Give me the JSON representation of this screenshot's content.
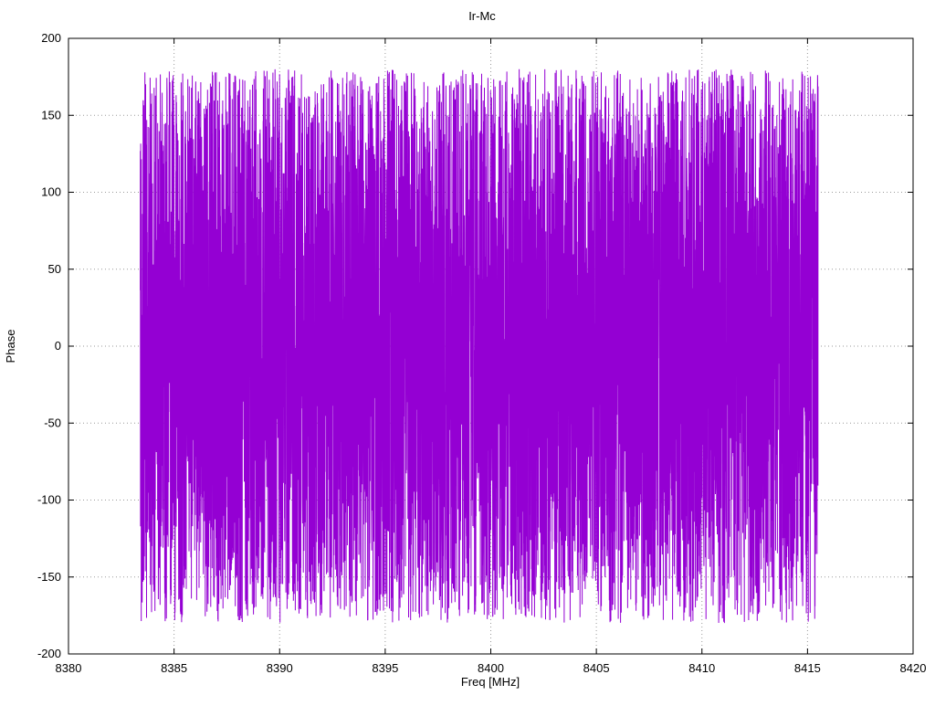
{
  "chart_data": {
    "type": "line",
    "title": "Ir-Mc",
    "xlabel": "Freq [MHz]",
    "ylabel": "Phase",
    "xlim": [
      8380,
      8420
    ],
    "ylim": [
      -200,
      200
    ],
    "xticks": [
      8380,
      8385,
      8390,
      8395,
      8400,
      8405,
      8410,
      8415,
      8420
    ],
    "yticks": [
      -200,
      -150,
      -100,
      -50,
      0,
      50,
      100,
      150,
      200
    ],
    "grid": true,
    "grid_style": "dotted",
    "grid_color": "#9a9a9a",
    "border_color": "#000000",
    "background": "#ffffff",
    "legend": "none",
    "series": [
      {
        "name": "phase",
        "color": "#9400d3",
        "description": "Dense uniformly-distributed wrapped phase noise spanning roughly -180 to +180 degrees, drawn as a connected line so the band appears as a solid violet block",
        "x_start": 8383.4,
        "x_end": 8415.5,
        "n_points": 6500,
        "y_min": -180,
        "y_max": 180,
        "distribution": "uniform",
        "seed": 42
      }
    ]
  }
}
